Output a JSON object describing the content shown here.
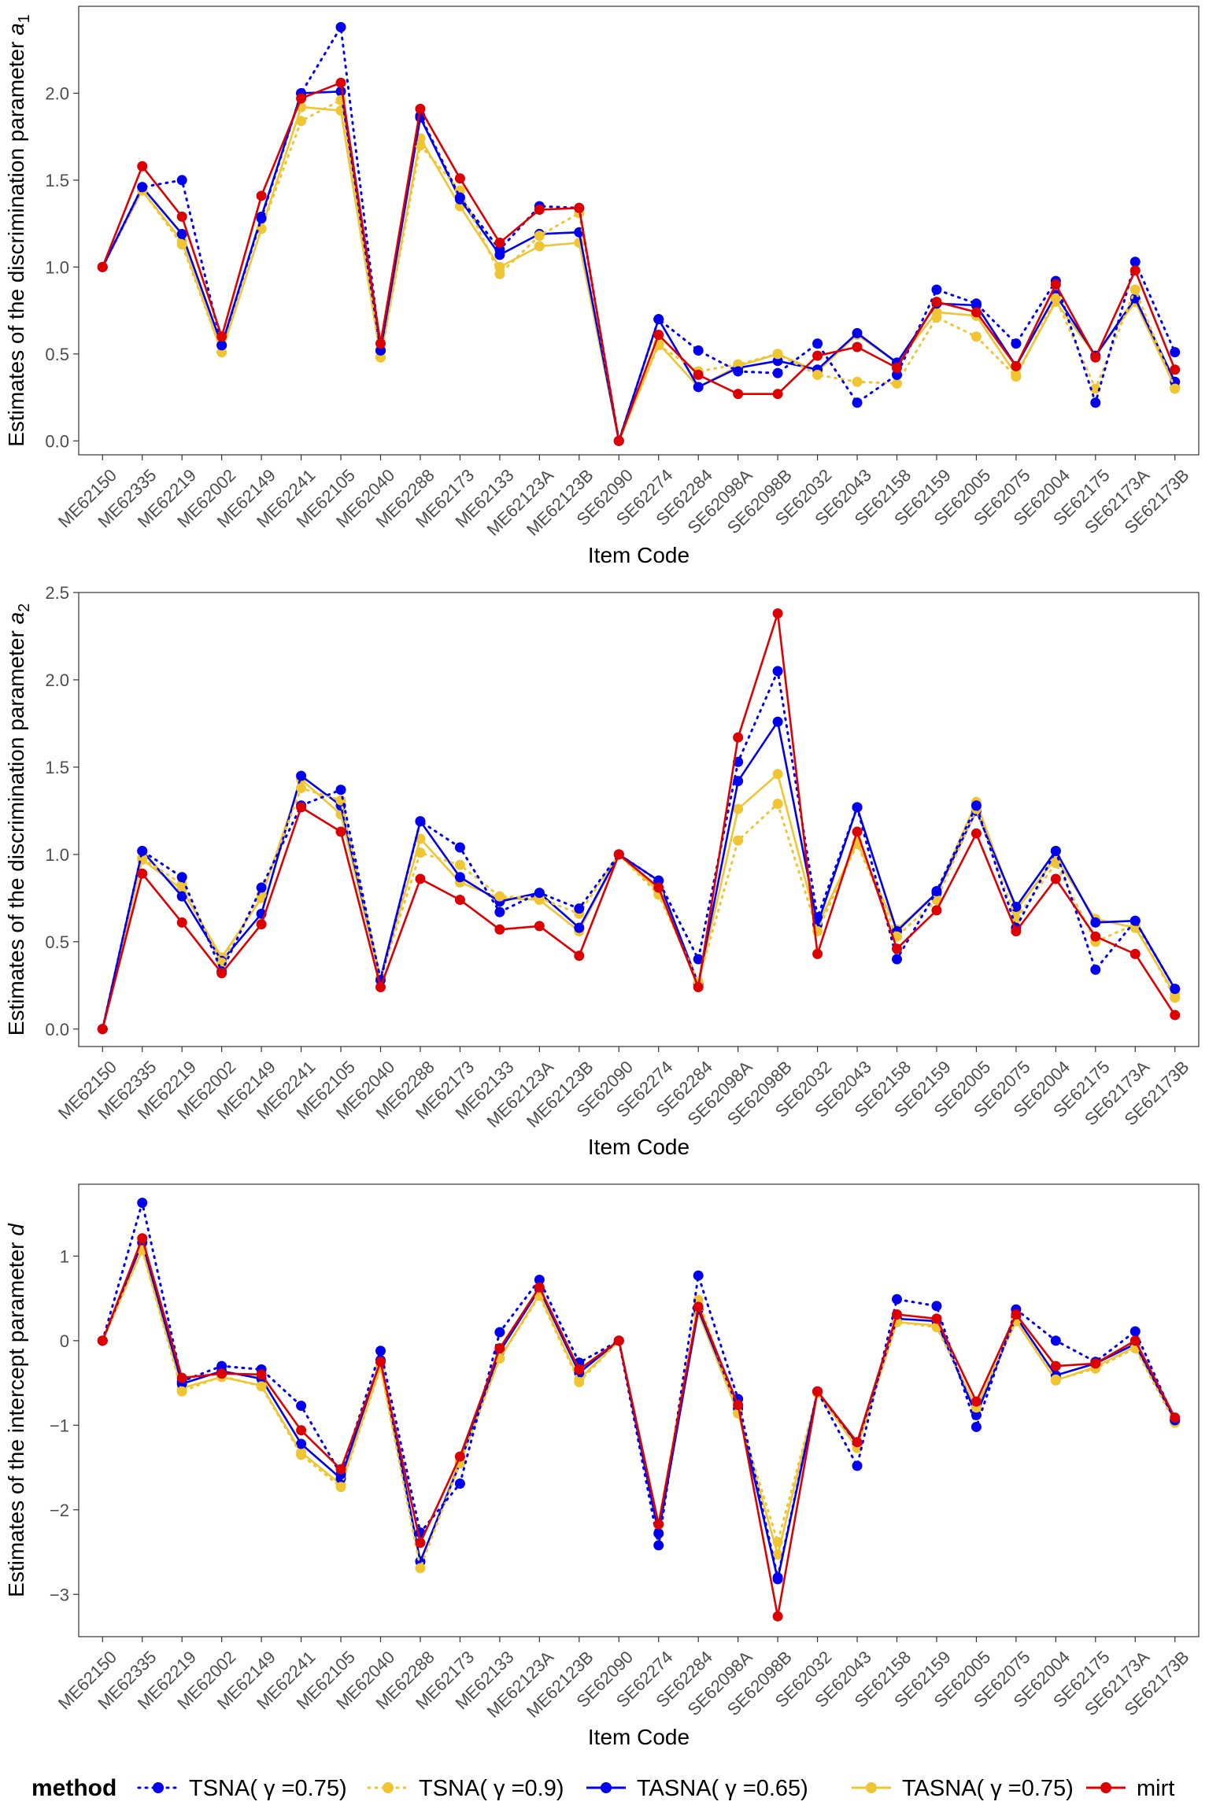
{
  "chart_data": [
    {
      "type": "line",
      "ylabel": "Estimates of the discrimination parameter a",
      "ylabel_sub": "1",
      "xlabel": "Item Code",
      "ylim": [
        -0.08,
        2.5
      ],
      "yticks": [
        "0.0",
        "0.5",
        "1.0",
        "1.5",
        "2.0"
      ],
      "ytick_values": [
        0,
        0.5,
        1,
        1.5,
        2
      ],
      "categories": [
        "ME62150",
        "ME62335",
        "ME62219",
        "ME62002",
        "ME62149",
        "ME62241",
        "ME62105",
        "ME62040",
        "ME62288",
        "ME62173",
        "ME62133",
        "ME62123A",
        "ME62123B",
        "SE62090",
        "SE62274",
        "SE62284",
        "SE62098A",
        "SE62098B",
        "SE62032",
        "SE62043",
        "SE62158",
        "SE62159",
        "SE62005",
        "SE62075",
        "SE62004",
        "SE62175",
        "SE62173A",
        "SE62173B"
      ],
      "series": [
        {
          "name": "TSNA( γ =0.75)",
          "values": [
            1.0,
            1.46,
            1.5,
            0.55,
            1.28,
            2.0,
            2.38,
            0.52,
            1.87,
            1.4,
            1.1,
            1.35,
            1.34,
            0.0,
            0.7,
            0.52,
            0.4,
            0.39,
            0.56,
            0.22,
            0.38,
            0.87,
            0.79,
            0.56,
            0.92,
            0.22,
            1.03,
            0.51
          ]
        },
        {
          "name": "TSNA( γ =0.9)",
          "values": [
            1.0,
            1.44,
            1.13,
            0.51,
            1.22,
            1.84,
            1.96,
            0.48,
            1.7,
            1.44,
            0.96,
            1.18,
            1.31,
            0.0,
            0.55,
            0.4,
            0.44,
            0.5,
            0.38,
            0.34,
            0.33,
            0.71,
            0.6,
            0.37,
            0.82,
            0.3,
            0.87,
            0.3
          ]
        },
        {
          "name": "TASNA( γ =0.65)",
          "values": [
            1.0,
            1.46,
            1.19,
            0.55,
            1.29,
            2.0,
            2.01,
            0.52,
            1.86,
            1.39,
            1.07,
            1.19,
            1.2,
            0.0,
            0.7,
            0.31,
            0.42,
            0.46,
            0.41,
            0.62,
            0.45,
            0.79,
            0.78,
            0.43,
            0.84,
            0.49,
            0.82,
            0.34
          ]
        },
        {
          "name": "TASNA( γ =0.75)",
          "values": [
            1.0,
            1.44,
            1.15,
            0.51,
            1.22,
            1.92,
            1.9,
            0.48,
            1.74,
            1.35,
            1.0,
            1.12,
            1.14,
            0.0,
            0.56,
            0.31,
            0.43,
            0.5,
            0.4,
            0.61,
            0.45,
            0.74,
            0.72,
            0.38,
            0.8,
            0.49,
            0.8,
            0.31
          ]
        },
        {
          "name": "mirt",
          "values": [
            1.0,
            1.58,
            1.29,
            0.6,
            1.41,
            1.97,
            2.06,
            0.56,
            1.91,
            1.51,
            1.14,
            1.33,
            1.34,
            0.0,
            0.61,
            0.38,
            0.27,
            0.27,
            0.49,
            0.54,
            0.42,
            0.8,
            0.74,
            0.43,
            0.9,
            0.48,
            0.98,
            0.41
          ]
        }
      ]
    },
    {
      "type": "line",
      "ylabel": "Estimates of the discrimination parameter a",
      "ylabel_sub": "2",
      "xlabel": "Item Code",
      "ylim": [
        -0.1,
        2.5
      ],
      "yticks": [
        "0.0",
        "0.5",
        "1.0",
        "1.5",
        "2.0",
        "2.5"
      ],
      "ytick_values": [
        0,
        0.5,
        1,
        1.5,
        2,
        2.5
      ],
      "categories": [
        "ME62150",
        "ME62335",
        "ME62219",
        "ME62002",
        "ME62149",
        "ME62241",
        "ME62105",
        "ME62040",
        "ME62288",
        "ME62173",
        "ME62133",
        "ME62123A",
        "ME62123B",
        "SE62090",
        "SE62274",
        "SE62284",
        "SE62098A",
        "SE62098B",
        "SE62032",
        "SE62043",
        "SE62158",
        "SE62159",
        "SE62005",
        "SE62075",
        "SE62004",
        "SE62175",
        "SE62173A",
        "SE62173B"
      ],
      "series": [
        {
          "name": "TSNA( γ =0.75)",
          "values": [
            0.0,
            1.02,
            0.87,
            0.33,
            0.81,
            1.28,
            1.37,
            0.28,
            1.19,
            1.04,
            0.67,
            0.78,
            0.69,
            1.0,
            0.85,
            0.4,
            1.53,
            2.05,
            0.64,
            1.27,
            0.4,
            0.79,
            1.28,
            0.58,
            1.02,
            0.34,
            0.62,
            0.23
          ]
        },
        {
          "name": "TSNA( γ =0.9)",
          "values": [
            0.0,
            0.98,
            0.83,
            0.38,
            0.77,
            1.38,
            1.31,
            0.29,
            1.01,
            0.94,
            0.76,
            0.75,
            0.66,
            1.0,
            0.77,
            0.27,
            1.08,
            1.29,
            0.56,
            1.06,
            0.53,
            0.74,
            1.26,
            0.63,
            0.95,
            0.5,
            0.6,
            0.18
          ]
        },
        {
          "name": "TASNA( γ =0.65)",
          "values": [
            0.0,
            1.02,
            0.76,
            0.39,
            0.66,
            1.45,
            1.28,
            0.29,
            1.19,
            0.87,
            0.73,
            0.78,
            0.58,
            1.0,
            0.85,
            0.26,
            1.42,
            1.76,
            0.6,
            1.27,
            0.56,
            0.78,
            1.25,
            0.7,
            1.02,
            0.61,
            0.62,
            0.23
          ]
        },
        {
          "name": "TASNA( γ =0.75)",
          "values": [
            0.0,
            0.97,
            0.8,
            0.41,
            0.75,
            1.43,
            1.23,
            0.29,
            1.09,
            0.84,
            0.75,
            0.74,
            0.56,
            1.0,
            0.79,
            0.26,
            1.26,
            1.46,
            0.59,
            1.07,
            0.57,
            0.78,
            1.3,
            0.68,
            0.98,
            0.63,
            0.58,
            0.2
          ]
        },
        {
          "name": "mirt",
          "values": [
            0.0,
            0.89,
            0.61,
            0.32,
            0.6,
            1.27,
            1.13,
            0.24,
            0.86,
            0.74,
            0.57,
            0.59,
            0.42,
            1.0,
            0.81,
            0.24,
            1.67,
            2.38,
            0.43,
            1.13,
            0.46,
            0.68,
            1.12,
            0.56,
            0.86,
            0.53,
            0.43,
            0.08
          ]
        }
      ]
    },
    {
      "type": "line",
      "ylabel": "Estimates of the intercept parameter d",
      "ylabel_sub": "",
      "xlabel": "Item Code",
      "ylim": [
        -3.5,
        1.85
      ],
      "yticks": [
        "−3",
        "−2",
        "−1",
        "0",
        "1"
      ],
      "ytick_values": [
        -3,
        -2,
        -1,
        0,
        1
      ],
      "categories": [
        "ME62150",
        "ME62335",
        "ME62219",
        "ME62002",
        "ME62149",
        "ME62241",
        "ME62105",
        "ME62040",
        "ME62288",
        "ME62173",
        "ME62133",
        "ME62123A",
        "ME62123B",
        "SE62090",
        "SE62274",
        "SE62284",
        "SE62098A",
        "SE62098B",
        "SE62032",
        "SE62043",
        "SE62158",
        "SE62159",
        "SE62005",
        "SE62075",
        "SE62004",
        "SE62175",
        "SE62173A",
        "SE62173B"
      ],
      "series": [
        {
          "name": "TSNA( γ =0.75)",
          "values": [
            0.0,
            1.63,
            -0.48,
            -0.3,
            -0.34,
            -0.77,
            -1.58,
            -0.12,
            -2.27,
            -1.69,
            0.1,
            0.72,
            -0.26,
            0.0,
            -2.42,
            0.77,
            -0.69,
            -2.8,
            -0.6,
            -1.48,
            0.49,
            0.41,
            -1.02,
            0.37,
            0.0,
            -0.25,
            0.11,
            -0.94
          ]
        },
        {
          "name": "TSNA( γ =0.9)",
          "values": [
            0.0,
            1.07,
            -0.6,
            -0.42,
            -0.54,
            -1.35,
            -1.73,
            -0.32,
            -2.69,
            -1.45,
            -0.21,
            0.53,
            -0.49,
            0.0,
            -2.17,
            0.48,
            -0.86,
            -2.38,
            -0.62,
            -1.26,
            0.22,
            0.16,
            -0.79,
            0.24,
            -0.46,
            -0.33,
            -0.09,
            -0.97
          ]
        },
        {
          "name": "TASNA( γ =0.65)",
          "values": [
            0.0,
            1.16,
            -0.51,
            -0.36,
            -0.45,
            -1.22,
            -1.63,
            -0.23,
            -2.61,
            -1.45,
            -0.13,
            0.61,
            -0.38,
            0.0,
            -2.28,
            0.37,
            -0.8,
            -2.82,
            -0.6,
            -1.22,
            0.26,
            0.23,
            -0.88,
            0.28,
            -0.41,
            -0.27,
            -0.04,
            -0.94
          ]
        },
        {
          "name": "TASNA( γ =0.75)",
          "values": [
            0.0,
            1.08,
            -0.56,
            -0.43,
            -0.53,
            -1.32,
            -1.7,
            -0.31,
            -2.62,
            -1.42,
            -0.21,
            0.55,
            -0.46,
            0.0,
            -2.18,
            0.33,
            -0.86,
            -2.53,
            -0.61,
            -1.27,
            0.22,
            0.18,
            -0.8,
            0.23,
            -0.47,
            -0.31,
            -0.07,
            -0.95
          ]
        },
        {
          "name": "mirt",
          "values": [
            0.0,
            1.21,
            -0.44,
            -0.39,
            -0.4,
            -1.06,
            -1.52,
            -0.25,
            -2.39,
            -1.37,
            -0.09,
            0.63,
            -0.34,
            0.0,
            -2.17,
            0.4,
            -0.76,
            -3.26,
            -0.6,
            -1.2,
            0.31,
            0.26,
            -0.72,
            0.31,
            -0.3,
            -0.27,
            0.0,
            -0.91
          ]
        }
      ]
    }
  ],
  "legend": {
    "title": "method",
    "entries": [
      {
        "label": "TSNA( γ =0.75)",
        "color": "#0000ee",
        "style": "dotted"
      },
      {
        "label": "TSNA( γ =0.9)",
        "color": "#f0c533",
        "style": "dotted"
      },
      {
        "label": "TASNA( γ =0.65)",
        "color": "#0000ee",
        "style": "solid"
      },
      {
        "label": "TASNA( γ =0.75)",
        "color": "#f0c533",
        "style": "solid"
      },
      {
        "label": "mirt",
        "color": "#dd0000",
        "style": "solid"
      }
    ]
  }
}
